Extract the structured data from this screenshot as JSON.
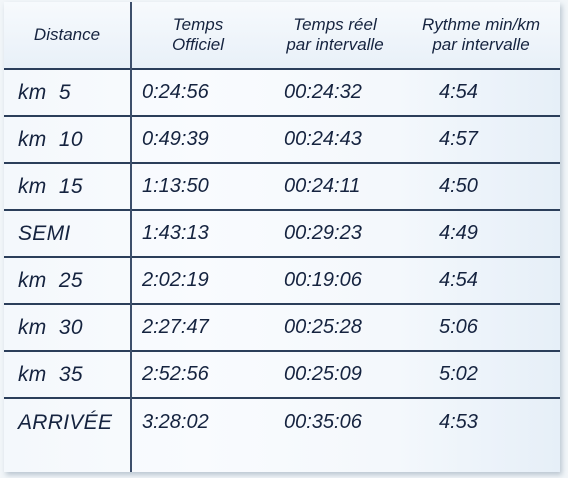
{
  "table": {
    "headers": {
      "distance": "Distance",
      "official_line1": "Temps",
      "official_line2": "Officiel",
      "real_line1": "Temps réel",
      "real_line2": "par intervalle",
      "pace_line1": "Rythme min/km",
      "pace_line2": "par intervalle"
    },
    "rows": [
      {
        "label": "km  5",
        "official": "0:24:56",
        "real": "00:24:32",
        "pace": "4:54"
      },
      {
        "label": "km  10",
        "official": "0:49:39",
        "real": "00:24:43",
        "pace": "4:57"
      },
      {
        "label": "km  15",
        "official": "1:13:50",
        "real": "00:24:11",
        "pace": "4:50"
      },
      {
        "label": "SEMI",
        "official": "1:43:13",
        "real": "00:29:23",
        "pace": "4:49"
      },
      {
        "label": "km  25",
        "official": "2:02:19",
        "real": "00:19:06",
        "pace": "4:54"
      },
      {
        "label": "km  30",
        "official": "2:27:47",
        "real": "00:25:28",
        "pace": "5:06"
      },
      {
        "label": "km  35",
        "official": "2:52:56",
        "real": "00:25:09",
        "pace": "5:02"
      },
      {
        "label": "ARRIVÉE",
        "official": "3:28:02",
        "real": "00:35:06",
        "pace": "4:53"
      }
    ]
  }
}
